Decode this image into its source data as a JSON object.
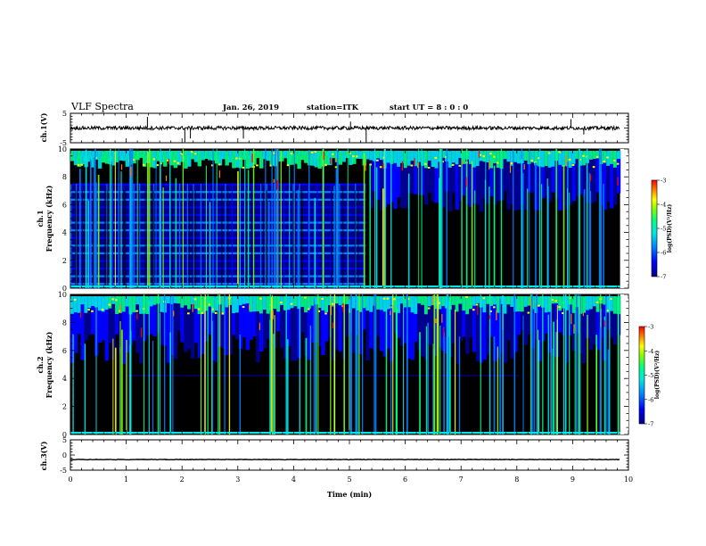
{
  "header": {
    "title": "VLF Spectra",
    "date": "Jan. 26, 2019",
    "station": "station=ITK",
    "start": "start  UT =   8 : 0  : 0"
  },
  "chart_data": [
    {
      "id": "ch1-waveform",
      "type": "line",
      "ylabel": "ch.1(V)",
      "ylim": [
        -5,
        5
      ],
      "yticks": [
        "5",
        "-5"
      ],
      "xlim": [
        0,
        10
      ],
      "baseline_value": 0,
      "trace_extent_min": [
        0,
        9.85
      ]
    },
    {
      "id": "ch1-spectrogram",
      "type": "heatmap",
      "ylabel_line1": "ch.1",
      "ylabel_line2": "Frequency (kHz)",
      "ylim": [
        0,
        10
      ],
      "yticks": [
        "0",
        "2",
        "4",
        "6",
        "8",
        "10"
      ],
      "xlim": [
        0,
        10
      ],
      "data_extent_min": [
        0,
        9.85
      ],
      "regime_change_min": 5.3,
      "interference_band_kHz": [
        0,
        7.5
      ],
      "colorbar": {
        "label": "log(PSD)(V²/Hz)",
        "range": [
          -7,
          -3
        ],
        "ticks": [
          "-3",
          "-4",
          "-5",
          "-6",
          "-7"
        ]
      }
    },
    {
      "id": "ch2-spectrogram",
      "type": "heatmap",
      "ylabel_line1": "ch.2",
      "ylabel_line2": "Frequency (kHz)",
      "ylim": [
        0,
        10
      ],
      "yticks": [
        "0",
        "2",
        "4",
        "6",
        "8",
        "10"
      ],
      "xlim": [
        0,
        10
      ],
      "data_extent_min": [
        0,
        9.85
      ],
      "colorbar": {
        "label": "log(PSD)(V²/Hz)",
        "range": [
          -7,
          -3
        ],
        "ticks": [
          "-3",
          "-4",
          "-5",
          "-6",
          "-7"
        ]
      }
    },
    {
      "id": "ch3-waveform",
      "type": "line",
      "ylabel": "ch.3(V)",
      "ylim": [
        -5,
        5
      ],
      "yticks": [
        "5",
        "0",
        "-5"
      ],
      "xlim": [
        0,
        10
      ],
      "baseline_value": -1.5,
      "trace_extent_min": [
        0,
        9.85
      ]
    }
  ],
  "xaxis": {
    "label": "Time  (min)",
    "ticks": [
      "0",
      "1",
      "2",
      "3",
      "4",
      "5",
      "6",
      "7",
      "8",
      "9",
      "10"
    ]
  },
  "colors": {
    "colormap": [
      "#000000",
      "#00008c",
      "#0000ff",
      "#0080ff",
      "#00e6e6",
      "#00ff80",
      "#80ff00",
      "#ffff00",
      "#ff8000",
      "#ff0000"
    ],
    "trace": "#000000"
  }
}
